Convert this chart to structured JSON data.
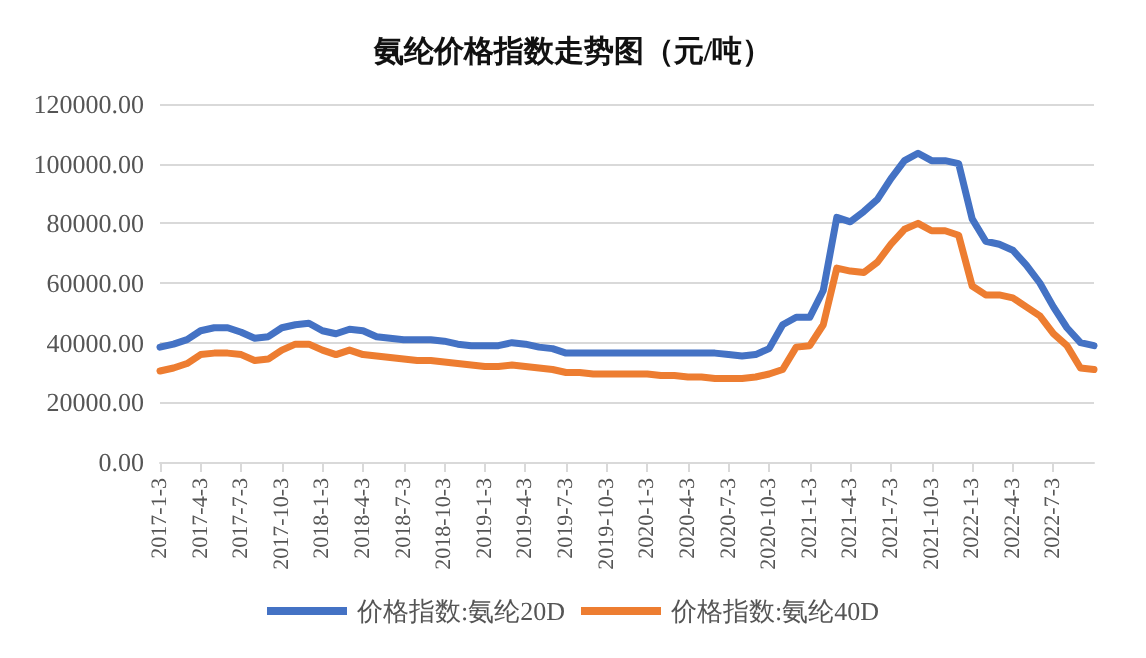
{
  "chart_data": {
    "type": "line",
    "title": "氨纶价格指数走势图（元/吨）",
    "categories": [
      "2017-1-3",
      null,
      null,
      "2017-4-3",
      null,
      null,
      "2017-7-3",
      null,
      null,
      "2017-10-3",
      null,
      null,
      "2018-1-3",
      null,
      null,
      "2018-4-3",
      null,
      null,
      "2018-7-3",
      null,
      null,
      "2018-10-3",
      null,
      null,
      "2019-1-3",
      null,
      null,
      "2019-4-3",
      null,
      null,
      "2019-7-3",
      null,
      null,
      "2019-10-3",
      null,
      null,
      "2020-1-3",
      null,
      null,
      "2020-4-3",
      null,
      null,
      "2020-7-3",
      null,
      null,
      "2020-10-3",
      null,
      null,
      "2021-1-3",
      null,
      null,
      "2021-4-3",
      null,
      null,
      "2021-7-3",
      null,
      null,
      "2021-10-3",
      null,
      null,
      "2022-1-3",
      null,
      null,
      "2022-4-3",
      null,
      null,
      "2022-7-3",
      null,
      null,
      null
    ],
    "series": [
      {
        "name": "价格指数:氨纶20D",
        "color": "#4472c4",
        "values": [
          38500,
          39500,
          41000,
          44000,
          45000,
          45000,
          43500,
          41500,
          42000,
          45000,
          46000,
          46500,
          44000,
          43000,
          44500,
          44000,
          42000,
          41500,
          41000,
          41000,
          41000,
          40500,
          39500,
          39000,
          39000,
          39000,
          40000,
          39500,
          38500,
          38000,
          36500,
          36500,
          36500,
          36500,
          36500,
          36500,
          36500,
          36500,
          36500,
          36500,
          36500,
          36500,
          36000,
          35500,
          36000,
          38000,
          46000,
          48500,
          48500,
          57500,
          82000,
          80500,
          84000,
          88000,
          95000,
          101000,
          103500,
          101000,
          101000,
          100000,
          81500,
          74000,
          73000,
          71000,
          66000,
          60000,
          52000,
          45000,
          40000,
          39000
        ]
      },
      {
        "name": "价格指数:氨纶40D",
        "color": "#ed7d31",
        "values": [
          30500,
          31500,
          33000,
          36000,
          36500,
          36500,
          36000,
          34000,
          34500,
          37500,
          39500,
          39500,
          37500,
          36000,
          37500,
          36000,
          35500,
          35000,
          34500,
          34000,
          34000,
          33500,
          33000,
          32500,
          32000,
          32000,
          32500,
          32000,
          31500,
          31000,
          30000,
          30000,
          29500,
          29500,
          29500,
          29500,
          29500,
          29000,
          29000,
          28500,
          28500,
          28000,
          28000,
          28000,
          28500,
          29500,
          31000,
          38500,
          39000,
          46000,
          65000,
          64000,
          63500,
          67000,
          73000,
          78000,
          80000,
          77500,
          77500,
          76000,
          59000,
          56000,
          56000,
          55000,
          52000,
          49000,
          43000,
          39000,
          31500,
          31000
        ]
      }
    ],
    "ylim": [
      0,
      120000
    ],
    "yticks": [
      {
        "value": 0,
        "label": "0.00"
      },
      {
        "value": 20000,
        "label": "20000.00"
      },
      {
        "value": 40000,
        "label": "40000.00"
      },
      {
        "value": 60000,
        "label": "60000.00"
      },
      {
        "value": 80000,
        "label": "80000.00"
      },
      {
        "value": 100000,
        "label": "100000.00"
      },
      {
        "value": 120000,
        "label": "120000.00"
      }
    ],
    "grid": "y",
    "legend": "bottom",
    "marker": "none",
    "line_style": "solid"
  }
}
